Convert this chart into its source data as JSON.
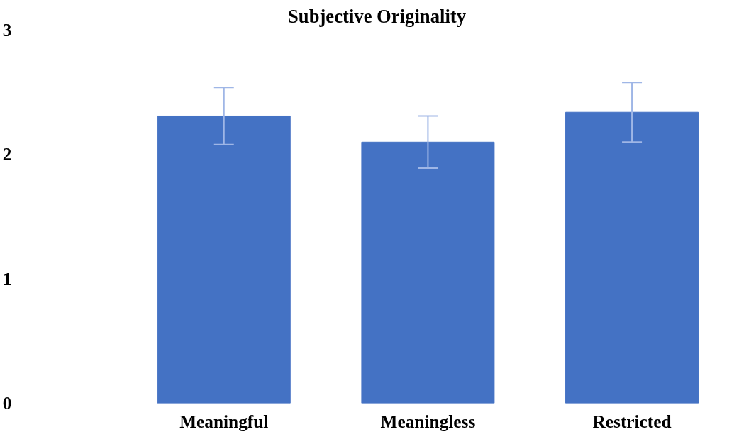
{
  "chart_data": {
    "type": "bar",
    "title": "Subjective Originality",
    "categories": [
      "Meaningful",
      "Meaningless",
      "Restricted"
    ],
    "values": [
      2.31,
      2.1,
      2.34
    ],
    "errors": [
      0.23,
      0.21,
      0.24
    ],
    "color": "#4472c4",
    "ylim": [
      0,
      3
    ],
    "yticks": [
      0,
      1,
      2,
      3
    ],
    "grid": false
  }
}
